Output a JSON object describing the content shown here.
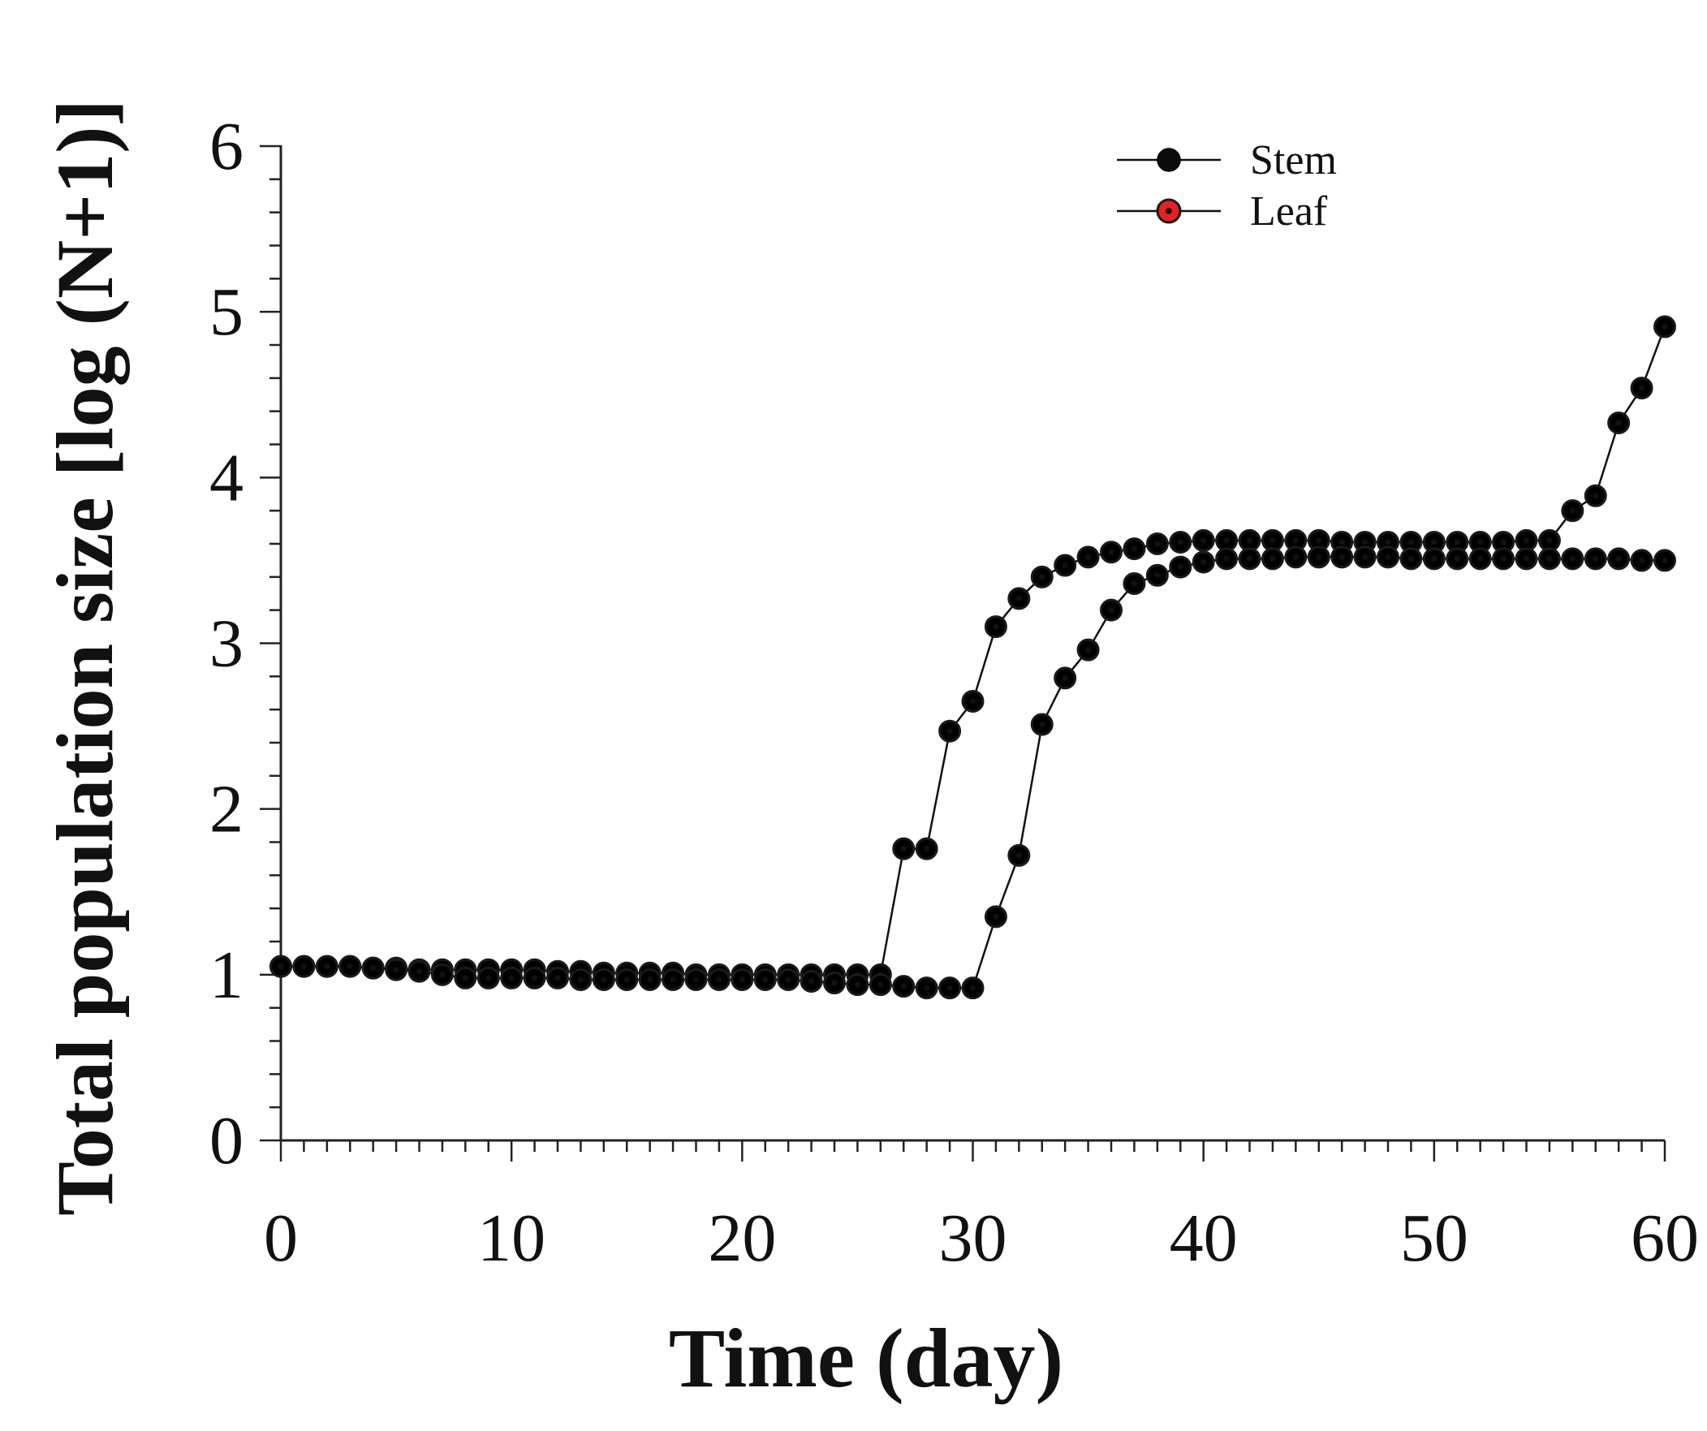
{
  "chart_data": {
    "type": "line",
    "title": "",
    "xlabel": "Time (day)",
    "ylabel": "Total population size [log (N+1)]",
    "xlim": [
      0,
      60
    ],
    "ylim": [
      0,
      6
    ],
    "x_ticks": [
      "0",
      "10",
      "20",
      "30",
      "40",
      "50",
      "60"
    ],
    "y_ticks": [
      "0",
      "1",
      "2",
      "3",
      "4",
      "5",
      "6"
    ],
    "grid": false,
    "legend_position": "top-right",
    "x": [
      0,
      1,
      2,
      3,
      4,
      5,
      6,
      7,
      8,
      9,
      10,
      11,
      12,
      13,
      14,
      15,
      16,
      17,
      18,
      19,
      20,
      21,
      22,
      23,
      24,
      25,
      26,
      27,
      28,
      29,
      30,
      31,
      32,
      33,
      34,
      35,
      36,
      37,
      38,
      39,
      40,
      41,
      42,
      43,
      44,
      45,
      46,
      47,
      48,
      49,
      50,
      51,
      52,
      53,
      54,
      55,
      56,
      57,
      58,
      59,
      60
    ],
    "series": [
      {
        "name": "Stem",
        "marker": "filled-circle",
        "color": "#000000",
        "values": [
          1.05,
          1.05,
          1.05,
          1.05,
          1.04,
          1.04,
          1.03,
          1.03,
          1.03,
          1.03,
          1.03,
          1.03,
          1.02,
          1.02,
          1.01,
          1.01,
          1.01,
          1.01,
          1.0,
          1.0,
          1.0,
          1.0,
          1.0,
          1.0,
          1.0,
          1.0,
          1.0,
          1.76,
          1.76,
          2.47,
          2.65,
          3.1,
          3.27,
          3.4,
          3.47,
          3.52,
          3.55,
          3.57,
          3.6,
          3.61,
          3.62,
          3.62,
          3.62,
          3.62,
          3.62,
          3.62,
          3.61,
          3.61,
          3.61,
          3.61,
          3.61,
          3.61,
          3.61,
          3.61,
          3.62,
          3.62,
          3.8,
          3.89,
          4.33,
          4.54,
          4.91
        ]
      },
      {
        "name": "Leaf",
        "marker": "red-circle-with-dot",
        "color": "#e8201f",
        "values": [
          1.05,
          1.05,
          1.05,
          1.05,
          1.04,
          1.03,
          1.02,
          1.0,
          0.98,
          0.98,
          0.98,
          0.98,
          0.98,
          0.97,
          0.97,
          0.97,
          0.97,
          0.97,
          0.97,
          0.97,
          0.97,
          0.97,
          0.97,
          0.96,
          0.95,
          0.94,
          0.94,
          0.93,
          0.92,
          0.92,
          0.92,
          1.35,
          1.72,
          2.51,
          2.79,
          2.96,
          3.2,
          3.36,
          3.41,
          3.46,
          3.49,
          3.51,
          3.51,
          3.51,
          3.52,
          3.52,
          3.52,
          3.52,
          3.52,
          3.51,
          3.51,
          3.51,
          3.51,
          3.51,
          3.51,
          3.51,
          3.51,
          3.51,
          3.51,
          3.5,
          3.5
        ]
      }
    ]
  }
}
